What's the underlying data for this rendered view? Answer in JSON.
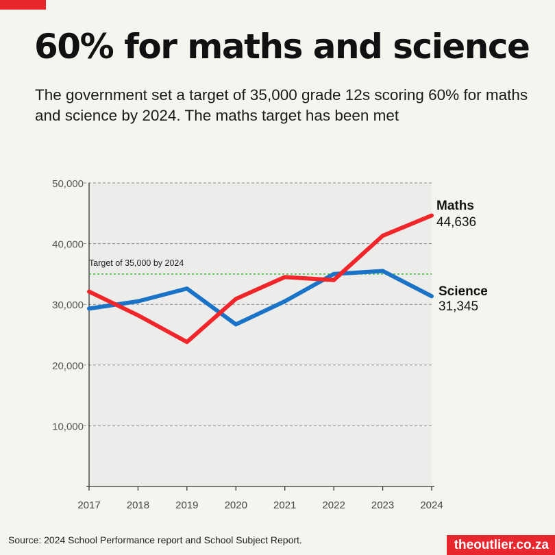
{
  "header": {
    "title": "60% for maths and science",
    "subtitle": "The government set a target of 35,000 grade 12s scoring 60% for maths and science by 2024. The maths target has been met"
  },
  "footer": {
    "source": "Source: 2024 School Performance report and School Subject Report.",
    "brand": "theoutlier.co.za"
  },
  "colors": {
    "accent": "#e8262d",
    "maths": "#f0262a",
    "science": "#1a73c7",
    "target_line": "#3cc43c",
    "plot_fill": "#ececea"
  },
  "chart_data": {
    "type": "line",
    "title": "",
    "xlabel": "",
    "ylabel": "",
    "x": [
      2017,
      2018,
      2019,
      2020,
      2021,
      2022,
      2023,
      2024
    ],
    "ylim": [
      0,
      50000
    ],
    "yticks": [
      10000,
      20000,
      30000,
      40000,
      50000
    ],
    "ytick_labels": [
      "10,000",
      "20,000",
      "30,000",
      "40,000",
      "50,000"
    ],
    "grid": true,
    "series": [
      {
        "name": "Maths",
        "values": [
          32100,
          28200,
          23800,
          30900,
          34500,
          34000,
          41300,
          44636
        ],
        "end_label": "44,636",
        "color": "#f0262a"
      },
      {
        "name": "Science",
        "values": [
          29300,
          30500,
          32600,
          26700,
          30500,
          35000,
          35500,
          31345
        ],
        "end_label": "31,345",
        "color": "#1a73c7"
      }
    ],
    "target": {
      "value": 35000,
      "label": "Target of 35,000 by 2024"
    }
  }
}
